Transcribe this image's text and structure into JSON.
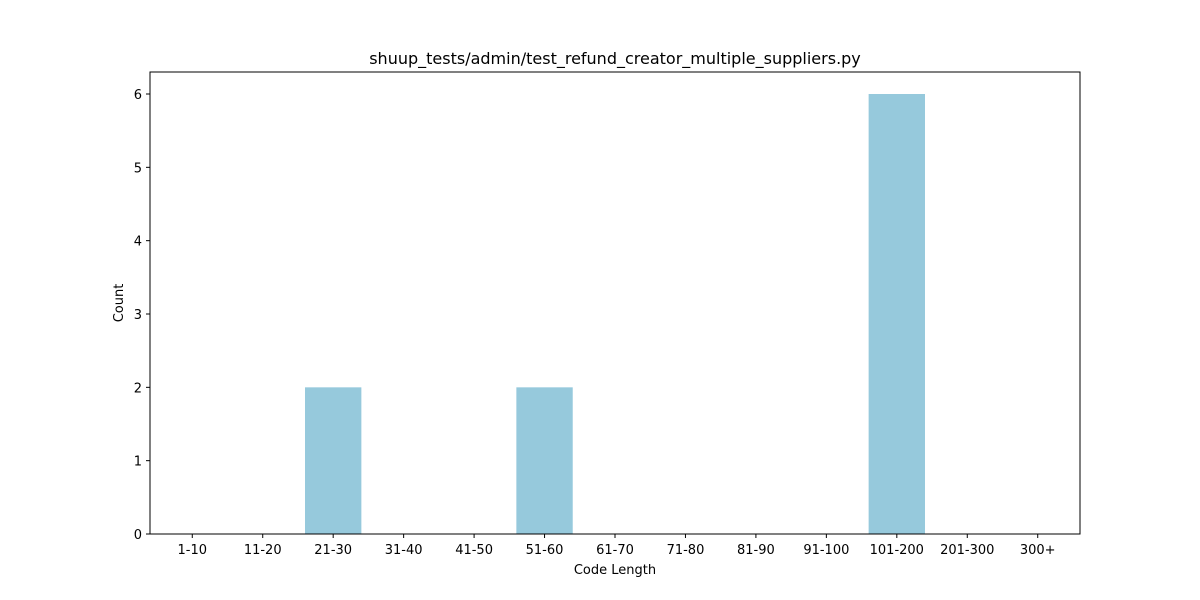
{
  "chart_data": {
    "type": "bar",
    "title": "shuup_tests/admin/test_refund_creator_multiple_suppliers.py",
    "xlabel": "Code Length",
    "ylabel": "Count",
    "categories": [
      "1-10",
      "11-20",
      "21-30",
      "31-40",
      "41-50",
      "51-60",
      "61-70",
      "71-80",
      "81-90",
      "91-100",
      "101-200",
      "201-300",
      "300+"
    ],
    "values": [
      0,
      0,
      2,
      0,
      0,
      2,
      0,
      0,
      0,
      0,
      6,
      0,
      0
    ],
    "yticks": [
      0,
      1,
      2,
      3,
      4,
      5,
      6
    ],
    "ylim": [
      0,
      6.3
    ],
    "grid": false,
    "bar_color": "#96c9dc"
  }
}
